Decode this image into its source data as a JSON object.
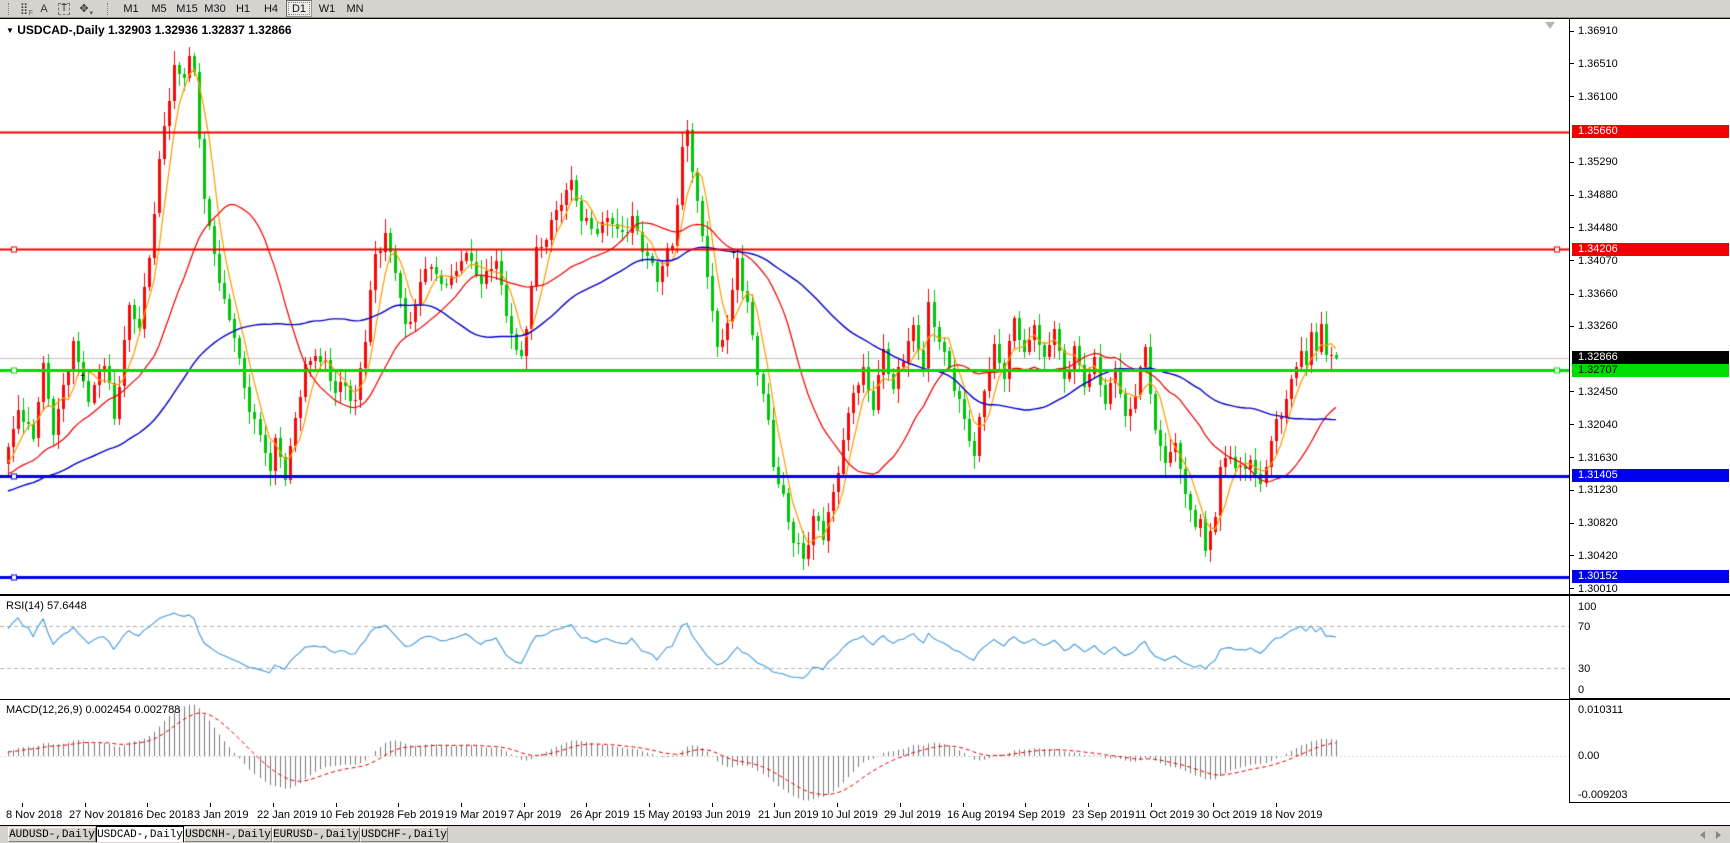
{
  "toolbar": {
    "icons": [
      {
        "name": "grid-dots-icon",
        "glyph": "⣿",
        "sub": "F"
      },
      {
        "name": "letter-a-icon",
        "glyph": "A",
        "sub": ""
      },
      {
        "name": "text-box-icon",
        "glyph": "T",
        "sub": ""
      },
      {
        "name": "cursor-arrows-icon",
        "glyph": "✥",
        "sub": "▾"
      }
    ],
    "timeframes": [
      "M1",
      "M5",
      "M15",
      "M30",
      "H1",
      "H4",
      "D1",
      "W1",
      "MN"
    ],
    "active_timeframe": "D1"
  },
  "chart": {
    "title": "USDCAD-,Daily",
    "dropdown_glyph": "▼",
    "open": "1.32903",
    "high": "1.32936",
    "low": "1.32837",
    "close": "1.32866"
  },
  "price_axis": {
    "ticks": [
      "1.36910",
      "1.36510",
      "1.36100",
      "1.35290",
      "1.34880",
      "1.34480",
      "1.34070",
      "1.33660",
      "1.33260",
      "1.32450",
      "1.32040",
      "1.31630",
      "1.31230",
      "1.30820",
      "1.30420",
      "1.30010"
    ],
    "boxes": [
      {
        "text": "1.35660",
        "bg": "#f00000",
        "fg": "#ffffff"
      },
      {
        "text": "1.34206",
        "bg": "#f00000",
        "fg": "#ffffff"
      },
      {
        "text": "1.32866",
        "bg": "#000000",
        "fg": "#ffffff"
      },
      {
        "text": "1.32707",
        "bg": "#00dc02",
        "fg": "#000000"
      },
      {
        "text": "1.31405",
        "bg": "#0000f0",
        "fg": "#ffffff"
      },
      {
        "text": "1.30152",
        "bg": "#0000f0",
        "fg": "#ffffff"
      }
    ]
  },
  "rsi_panel": {
    "label": "RSI(14)",
    "value": "57.6448",
    "levels": [
      "100",
      "70",
      "30",
      "0"
    ],
    "level_values": [
      100,
      70,
      30,
      0
    ],
    "line_color": "#459add"
  },
  "macd_panel": {
    "label": "MACD(12,26,9)",
    "values": "0.002454 0.002788",
    "axis_top": "0.010311",
    "axis_zero": "0.00",
    "axis_bottom": "-0.009203",
    "hist_color": "#7d7d7d",
    "signal_color": "#f00000"
  },
  "date_axis": {
    "labels": [
      "8 Nov 2018",
      "27 Nov 2018",
      "16 Dec 2018",
      "3 Jan 2019",
      "22 Jan 2019",
      "10 Feb 2019",
      "28 Feb 2019",
      "19 Mar 2019",
      "7 Apr 2019",
      "26 Apr 2019",
      "15 May 2019",
      "3 Jun 2019",
      "21 Jun 2019",
      "10 Jul 2019",
      "29 Jul 2019",
      "16 Aug 2019",
      "4 Sep 2019",
      "23 Sep 2019",
      "11 Oct 2019",
      "30 Oct 2019",
      "18 Nov 2019"
    ]
  },
  "tabs": [
    {
      "label": "AUDUSD-,Daily",
      "active": false
    },
    {
      "label": "USDCAD-,Daily",
      "active": true
    },
    {
      "label": "USDCNH-,Daily",
      "active": false
    },
    {
      "label": "EURUSD-,Daily",
      "active": false
    },
    {
      "label": "USDCHF-,Daily",
      "active": false
    }
  ],
  "chart_data": {
    "type": "candlestick",
    "symbol": "USDCAD-",
    "timeframe": "Daily",
    "bars": 265,
    "price_range": {
      "top": 1.37046,
      "bottom": 1.2994
    },
    "up_color": "#f50a0a",
    "down_color": "#00c60a",
    "bid_line": {
      "price": 1.32866,
      "color": "#c4c4c4"
    },
    "hlines": [
      {
        "price": 1.3566,
        "color": "#f00000",
        "width": 2,
        "markers": []
      },
      {
        "price": 1.34206,
        "color": "#f00000",
        "width": 2,
        "markers": [
          "left",
          "right"
        ]
      },
      {
        "price": 1.32707,
        "color": "#00dc02",
        "width": 3,
        "markers": [
          "left",
          "right"
        ]
      },
      {
        "price": 1.31405,
        "color": "#0000f0",
        "width": 3,
        "markers": [
          "left"
        ]
      },
      {
        "price": 1.30152,
        "color": "#0000f0",
        "width": 3,
        "markers": [
          "left"
        ]
      }
    ],
    "moving_averages": [
      {
        "period": 5,
        "color": "#ff9a00",
        "width": 1.2
      },
      {
        "period": 22,
        "color": "#f00000",
        "width": 1.2
      },
      {
        "period": 55,
        "color": "#0202c8",
        "width": 1.4
      }
    ],
    "last_ohlc": {
      "open": 1.32903,
      "high": 1.32936,
      "low": 1.32837,
      "close": 1.32866
    },
    "close_anchors": [
      [
        0,
        1.317
      ],
      [
        2,
        1.3225
      ],
      [
        5,
        1.3185
      ],
      [
        7,
        1.327
      ],
      [
        9,
        1.3195
      ],
      [
        13,
        1.33
      ],
      [
        16,
        1.324
      ],
      [
        19,
        1.328
      ],
      [
        21,
        1.3215
      ],
      [
        24,
        1.335
      ],
      [
        26,
        1.332
      ],
      [
        28,
        1.342
      ],
      [
        30,
        1.353
      ],
      [
        32,
        1.361
      ],
      [
        33,
        1.3645
      ],
      [
        34,
        1.3635
      ],
      [
        36,
        1.3655
      ],
      [
        37,
        1.364
      ],
      [
        38,
        1.356
      ],
      [
        39,
        1.3477
      ],
      [
        41,
        1.342
      ],
      [
        43,
        1.3355
      ],
      [
        45,
        1.331
      ],
      [
        47,
        1.325
      ],
      [
        49,
        1.321
      ],
      [
        51,
        1.317
      ],
      [
        52,
        1.315
      ],
      [
        53,
        1.3185
      ],
      [
        55,
        1.3145
      ],
      [
        57,
        1.321
      ],
      [
        59,
        1.327
      ],
      [
        61,
        1.3295
      ],
      [
        63,
        1.3275
      ],
      [
        65,
        1.324
      ],
      [
        67,
        1.3255
      ],
      [
        69,
        1.323
      ],
      [
        71,
        1.3305
      ],
      [
        73,
        1.342
      ],
      [
        75,
        1.344
      ],
      [
        77,
        1.339
      ],
      [
        79,
        1.332
      ],
      [
        81,
        1.3355
      ],
      [
        84,
        1.3405
      ],
      [
        86,
        1.3375
      ],
      [
        89,
        1.3393
      ],
      [
        91,
        1.3415
      ],
      [
        94,
        1.338
      ],
      [
        97,
        1.3405
      ],
      [
        99,
        1.334
      ],
      [
        102,
        1.328
      ],
      [
        105,
        1.342
      ],
      [
        108,
        1.345
      ],
      [
        110,
        1.348
      ],
      [
        112,
        1.351
      ],
      [
        114,
        1.346
      ],
      [
        117,
        1.344
      ],
      [
        119,
        1.3465
      ],
      [
        122,
        1.3435
      ],
      [
        124,
        1.346
      ],
      [
        127,
        1.341
      ],
      [
        129,
        1.338
      ],
      [
        132,
        1.343
      ],
      [
        134,
        1.354
      ],
      [
        135,
        1.356
      ],
      [
        137,
        1.348
      ],
      [
        139,
        1.34
      ],
      [
        141,
        1.329
      ],
      [
        143,
        1.333
      ],
      [
        145,
        1.341
      ],
      [
        147,
        1.335
      ],
      [
        149,
        1.327
      ],
      [
        151,
        1.321
      ],
      [
        152,
        1.316
      ],
      [
        154,
        1.311
      ],
      [
        156,
        1.306
      ],
      [
        158,
        1.3042
      ],
      [
        160,
        1.309
      ],
      [
        162,
        1.3065
      ],
      [
        164,
        1.312
      ],
      [
        166,
        1.319
      ],
      [
        168,
        1.324
      ],
      [
        170,
        1.327
      ],
      [
        172,
        1.323
      ],
      [
        174,
        1.329
      ],
      [
        176,
        1.325
      ],
      [
        178,
        1.329
      ],
      [
        180,
        1.332
      ],
      [
        182,
        1.328
      ],
      [
        183,
        1.335
      ],
      [
        185,
        1.331
      ],
      [
        187,
        1.327
      ],
      [
        189,
        1.323
      ],
      [
        191,
        1.319
      ],
      [
        192,
        1.3165
      ],
      [
        194,
        1.324
      ],
      [
        196,
        1.33
      ],
      [
        198,
        1.327
      ],
      [
        200,
        1.333
      ],
      [
        202,
        1.329
      ],
      [
        204,
        1.333
      ],
      [
        206,
        1.328
      ],
      [
        208,
        1.332
      ],
      [
        210,
        1.326
      ],
      [
        212,
        1.33
      ],
      [
        214,
        1.325
      ],
      [
        216,
        1.329
      ],
      [
        218,
        1.323
      ],
      [
        220,
        1.327
      ],
      [
        222,
        1.321
      ],
      [
        224,
        1.325
      ],
      [
        226,
        1.329
      ],
      [
        228,
        1.32
      ],
      [
        230,
        1.316
      ],
      [
        232,
        1.3175
      ],
      [
        234,
        1.312
      ],
      [
        236,
        1.308
      ],
      [
        237,
        1.3095
      ],
      [
        238,
        1.3042
      ],
      [
        240,
        1.309
      ],
      [
        241,
        1.315
      ],
      [
        243,
        1.317
      ],
      [
        245,
        1.314
      ],
      [
        247,
        1.316
      ],
      [
        249,
        1.313
      ],
      [
        251,
        1.318
      ],
      [
        253,
        1.322
      ],
      [
        255,
        1.326
      ],
      [
        257,
        1.33
      ],
      [
        258,
        1.327
      ],
      [
        259,
        1.332
      ],
      [
        260,
        1.33
      ],
      [
        261,
        1.333
      ],
      [
        262,
        1.329
      ],
      [
        263,
        1.32903
      ],
      [
        264,
        1.32866
      ]
    ],
    "rsi_last": 57.6448,
    "macd_last": {
      "main": 0.002454,
      "signal": 0.002788
    }
  }
}
